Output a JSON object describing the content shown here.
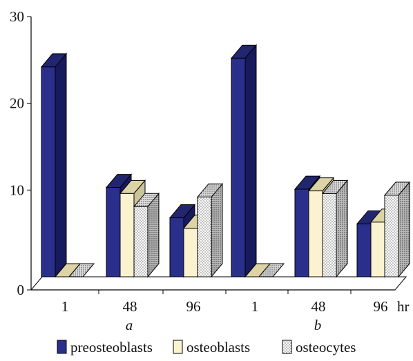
{
  "chart_data": {
    "type": "bar",
    "three_d": true,
    "groups": [
      {
        "label": "a",
        "categories": [
          "1",
          "48",
          "96"
        ]
      },
      {
        "label": "b",
        "categories": [
          "1",
          "48",
          "96"
        ]
      }
    ],
    "x_unit": "hr",
    "series": [
      {
        "name": "preosteoblasts",
        "color": "#2b2f8c",
        "pattern": "solid",
        "values": [
          24.2,
          10.3,
          6.8,
          25.2,
          10.1,
          6.1
        ]
      },
      {
        "name": "osteoblasts",
        "color": "#fbf3cf",
        "pattern": "solid",
        "values": [
          0,
          9.6,
          5.6,
          0,
          9.9,
          6.3
        ]
      },
      {
        "name": "osteocytes",
        "color": "#ffffff",
        "pattern": "dots",
        "values": [
          0,
          8.1,
          9.2,
          0,
          9.6,
          9.4
        ]
      }
    ],
    "yticks": [
      0,
      10,
      20,
      30
    ],
    "ylim": [
      0,
      30
    ],
    "xlabel": "",
    "ylabel": "",
    "title": "",
    "grid": false,
    "legend_position": "bottom"
  }
}
